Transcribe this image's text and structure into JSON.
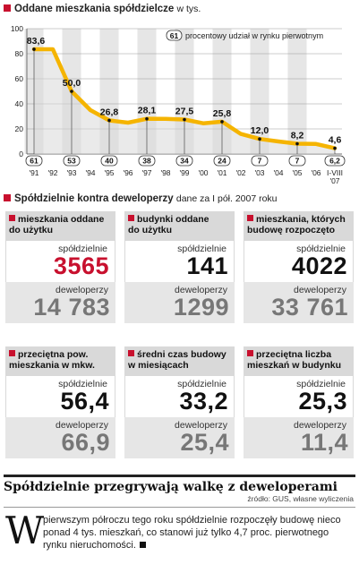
{
  "chart_data": {
    "type": "area",
    "title": "Oddane mieszkania spółdzielcze",
    "title_unit": "w tys.",
    "legend_badge": "61",
    "legend_text": "procentowy udział  w rynku pierwotnym",
    "ylim": [
      0,
      100
    ],
    "yticks": [
      "0",
      "20",
      "40",
      "60",
      "80",
      "100"
    ],
    "x_labels": [
      "'91",
      "'92",
      "'93",
      "'94",
      "'95",
      "'96",
      "'97",
      "'98",
      "'99",
      "'00",
      "'01",
      "'02",
      "'03",
      "'04",
      "'05",
      "'06",
      "I-VIII '07"
    ],
    "values": [
      83.6,
      83.6,
      50.0,
      35.0,
      26.8,
      25.0,
      28.1,
      28.0,
      27.5,
      24.5,
      25.8,
      16.0,
      12.0,
      10.0,
      8.2,
      8.0,
      4.6
    ],
    "point_labels": [
      {
        "i": 1,
        "text": "83,6"
      },
      {
        "i": 3,
        "text": "50,0"
      },
      {
        "i": 5,
        "text": "26,8"
      },
      {
        "i": 7,
        "text": "28,1"
      },
      {
        "i": 9,
        "text": "27,5"
      },
      {
        "i": 11,
        "text": "25,8"
      },
      {
        "i": 13,
        "text": "12,0"
      },
      {
        "i": 15,
        "text": "8,2"
      },
      {
        "i": 17,
        "text": "4,6"
      },
      {
        "i": 18,
        "text": "6,2"
      }
    ],
    "share_badges": [
      {
        "x": "'91",
        "text": "61"
      },
      {
        "x": "'93",
        "text": "53"
      },
      {
        "x": "'95",
        "text": "40"
      },
      {
        "x": "'97",
        "text": "38"
      },
      {
        "x": "'99",
        "text": "34"
      },
      {
        "x": "'01",
        "text": "24"
      },
      {
        "x": "'03",
        "text": "7"
      },
      {
        "x": "'05",
        "text": "7"
      },
      {
        "x": "I-VIII '07",
        "text": "6,2"
      }
    ],
    "line_color": "#f5b400",
    "shade_color": "#e6e6e6"
  },
  "section2": {
    "title": "Spółdzielnie kontra deweloperzy",
    "subtitle": "dane za I pół. 2007 roku"
  },
  "cards": [
    {
      "title1": "mieszkania oddane",
      "title2": "do użytku",
      "top_label": "spółdzielnie",
      "top_value": "3565",
      "bot_label": "deweloperzy",
      "bot_value": "14 783"
    },
    {
      "title1": "budynki oddane",
      "title2": "do użytku",
      "top_label": "spółdzielnie",
      "top_value": "141",
      "bot_label": "deweloperzy",
      "bot_value": "1299"
    },
    {
      "title1": "mieszkania, których",
      "title2": "budowę rozpoczęto",
      "top_label": "spółdzielnie",
      "top_value": "4022",
      "bot_label": "deweloperzy",
      "bot_value": "33 761"
    },
    {
      "title1": "przeciętna pow.",
      "title2": "mieszkania w mkw.",
      "top_label": "spółdzielnie",
      "top_value": "56,4",
      "bot_label": "deweloperzy",
      "bot_value": "66,9"
    },
    {
      "title1": "średni czas budowy",
      "title2": "w miesiącach",
      "top_label": "spółdzielnie",
      "top_value": "33,2",
      "bot_label": "deweloperzy",
      "bot_value": "25,4"
    },
    {
      "title1": "przeciętna liczba",
      "title2": "mieszkań w budynku",
      "top_label": "spółdzielnie",
      "top_value": "25,3",
      "bot_label": "deweloperzy",
      "bot_value": "11,4"
    }
  ],
  "article": {
    "headline": "Spółdzielnie przegrywają walkę z deweloperami",
    "source": "źródło: GUS, własne wyliczenia",
    "dropcap": "W",
    "body": "pierwszym półroczu tego roku spółdzielnie rozpoczęły budowę nieco ponad 4 tys. mieszkań, co stanowi już tylko 4,7 proc. pierwotnego rynku nieruchomości."
  }
}
